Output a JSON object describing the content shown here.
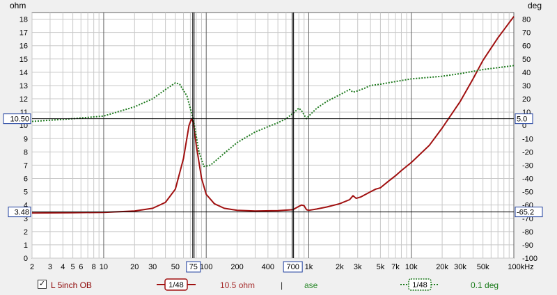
{
  "chart_data": {
    "type": "line",
    "y_left": {
      "unit": "ohm",
      "ticks": [
        "0",
        "1",
        "2",
        "3",
        "4",
        "5",
        "6",
        "7",
        "8",
        "9",
        "10",
        "11",
        "12",
        "13",
        "14",
        "15",
        "16",
        "17",
        "18"
      ],
      "range": [
        0,
        18.5
      ]
    },
    "y_right": {
      "unit": "deg",
      "ticks": [
        "-100",
        "-90",
        "-80",
        "-70",
        "-60",
        "-50",
        "-40",
        "-30",
        "-20",
        "-10",
        "0",
        "10",
        "20",
        "30",
        "40",
        "50",
        "60",
        "70",
        "80"
      ],
      "range": [
        -100,
        85
      ]
    },
    "x": {
      "scale": "log",
      "range": [
        2,
        100000
      ],
      "tick_values": [
        2,
        3,
        4,
        5,
        6,
        8,
        10,
        20,
        30,
        50,
        100,
        200,
        400,
        1000,
        2000,
        3000,
        5000,
        7000,
        10000,
        20000,
        30000,
        50000,
        100000
      ],
      "tick_labels": [
        "2",
        "3",
        "4",
        "5",
        "6",
        "8",
        "10",
        "20",
        "30",
        "50",
        "100",
        "200",
        "400",
        "1k",
        "2k",
        "3k",
        "5k",
        "7k",
        "10k",
        "20k",
        "30k",
        "50k",
        "100kHz"
      ]
    },
    "cursors": {
      "x1": {
        "value": 75,
        "label": "75"
      },
      "x2": {
        "value": 700,
        "label": "700"
      },
      "y1_left": {
        "value": 10.5,
        "label": "10.50"
      },
      "y1_right": {
        "value": 5.0,
        "label": "5.0"
      },
      "y2_left": {
        "value": 3.48,
        "label": "3.48"
      },
      "y2_right": {
        "value": -65.2,
        "label": "-65.2"
      }
    },
    "series": [
      {
        "name": "L 5inch OB",
        "axis": "left",
        "color": "#a01010",
        "style": "solid",
        "points": [
          [
            2,
            3.4
          ],
          [
            5,
            3.42
          ],
          [
            10,
            3.45
          ],
          [
            20,
            3.55
          ],
          [
            30,
            3.75
          ],
          [
            40,
            4.2
          ],
          [
            50,
            5.2
          ],
          [
            60,
            7.5
          ],
          [
            68,
            10.0
          ],
          [
            72,
            10.5
          ],
          [
            75,
            10.2
          ],
          [
            80,
            8.5
          ],
          [
            90,
            6.0
          ],
          [
            100,
            4.8
          ],
          [
            120,
            4.1
          ],
          [
            150,
            3.75
          ],
          [
            200,
            3.6
          ],
          [
            300,
            3.55
          ],
          [
            500,
            3.58
          ],
          [
            700,
            3.65
          ],
          [
            800,
            3.9
          ],
          [
            850,
            4.0
          ],
          [
            900,
            3.95
          ],
          [
            950,
            3.65
          ],
          [
            1000,
            3.6
          ],
          [
            1200,
            3.7
          ],
          [
            1500,
            3.85
          ],
          [
            2000,
            4.1
          ],
          [
            2500,
            4.4
          ],
          [
            2700,
            4.7
          ],
          [
            2900,
            4.5
          ],
          [
            3200,
            4.6
          ],
          [
            4000,
            5.0
          ],
          [
            4500,
            5.2
          ],
          [
            5000,
            5.3
          ],
          [
            6000,
            5.8
          ],
          [
            7000,
            6.2
          ],
          [
            8000,
            6.6
          ],
          [
            10000,
            7.2
          ],
          [
            15000,
            8.5
          ],
          [
            20000,
            9.8
          ],
          [
            30000,
            11.8
          ],
          [
            40000,
            13.5
          ],
          [
            50000,
            14.9
          ],
          [
            70000,
            16.6
          ],
          [
            100000,
            18.2
          ]
        ]
      },
      {
        "name": "ase",
        "axis": "right",
        "color": "#1e7a1e",
        "style": "dotted",
        "points": [
          [
            2,
            3
          ],
          [
            5,
            5
          ],
          [
            10,
            7
          ],
          [
            20,
            14
          ],
          [
            30,
            20
          ],
          [
            40,
            27
          ],
          [
            50,
            32
          ],
          [
            55,
            31
          ],
          [
            65,
            22
          ],
          [
            75,
            4
          ],
          [
            85,
            -20
          ],
          [
            95,
            -31
          ],
          [
            110,
            -30
          ],
          [
            150,
            -21
          ],
          [
            200,
            -13
          ],
          [
            300,
            -5
          ],
          [
            400,
            -1
          ],
          [
            500,
            2
          ],
          [
            600,
            5
          ],
          [
            700,
            9
          ],
          [
            800,
            13
          ],
          [
            850,
            11
          ],
          [
            950,
            5
          ],
          [
            1000,
            7
          ],
          [
            1200,
            13
          ],
          [
            1500,
            18
          ],
          [
            2000,
            23
          ],
          [
            2500,
            27
          ],
          [
            2700,
            25
          ],
          [
            3000,
            26
          ],
          [
            3500,
            28
          ],
          [
            4000,
            30
          ],
          [
            5000,
            31
          ],
          [
            7000,
            33
          ],
          [
            10000,
            35
          ],
          [
            20000,
            37
          ],
          [
            30000,
            39
          ],
          [
            50000,
            42
          ],
          [
            100000,
            45
          ]
        ]
      }
    ]
  },
  "legend": {
    "checkbox_mark": "✓",
    "trace_name": "L 5inch OB",
    "smoothing_1": "1/48",
    "impedance_readout": "10.5 ohm",
    "separator": "|",
    "phase_name": "ase",
    "smoothing_2": "1/48",
    "phase_readout": "0.1 deg"
  }
}
